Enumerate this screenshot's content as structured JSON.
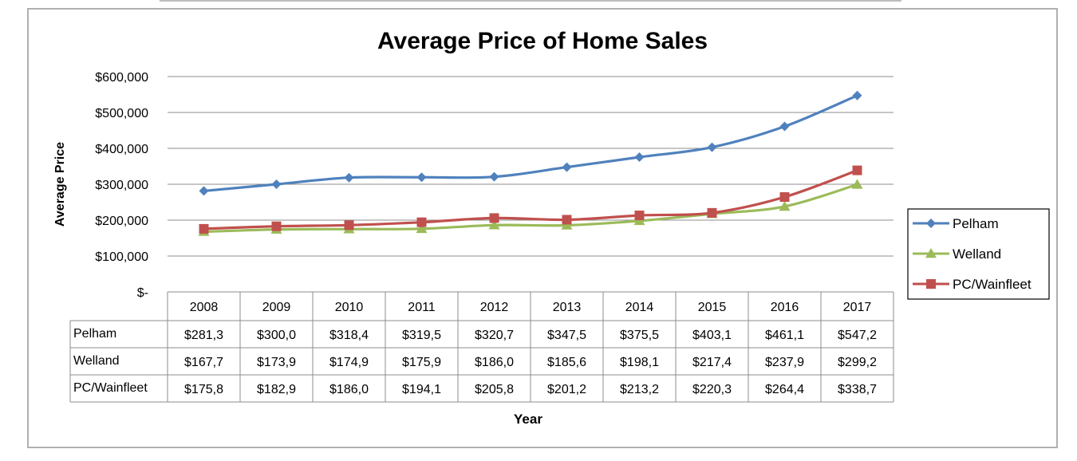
{
  "chart_data": {
    "type": "line",
    "title": "Average Price of Home Sales",
    "xlabel": "Year",
    "ylabel": "Average Price",
    "ylim": [
      0,
      600000
    ],
    "y_ticks": [
      {
        "value": 0,
        "label": "$-"
      },
      {
        "value": 100000,
        "label": "$100,000"
      },
      {
        "value": 200000,
        "label": "$200,000"
      },
      {
        "value": 300000,
        "label": "$300,000"
      },
      {
        "value": 400000,
        "label": "$400,000"
      },
      {
        "value": 500000,
        "label": "$500,000"
      },
      {
        "value": 600000,
        "label": "$600,000"
      }
    ],
    "grid": true,
    "legend_position": "right",
    "categories": [
      "2008",
      "2009",
      "2010",
      "2011",
      "2012",
      "2013",
      "2014",
      "2015",
      "2016",
      "2017"
    ],
    "series": [
      {
        "name": "Pelham",
        "color": "#4f81bd",
        "marker": "diamond",
        "values": [
          281300,
          300000,
          318400,
          319500,
          320700,
          347500,
          375500,
          403100,
          461100,
          547200
        ],
        "table_labels": [
          "$281,3",
          "$300,0",
          "$318,4",
          "$319,5",
          "$320,7",
          "$347,5",
          "$375,5",
          "$403,1",
          "$461,1",
          "$547,2"
        ]
      },
      {
        "name": "Welland",
        "color": "#9bbb59",
        "marker": "triangle",
        "values": [
          167700,
          173900,
          174900,
          175900,
          186000,
          185600,
          198100,
          217400,
          237900,
          299200
        ],
        "table_labels": [
          "$167,7",
          "$173,9",
          "$174,9",
          "$175,9",
          "$186,0",
          "$185,6",
          "$198,1",
          "$217,4",
          "$237,9",
          "$299,2"
        ]
      },
      {
        "name": "PC/Wainfleet",
        "color": "#c0504d",
        "marker": "square",
        "values": [
          175800,
          182900,
          186000,
          194100,
          205800,
          201200,
          213200,
          220300,
          264400,
          338700
        ],
        "table_labels": [
          "$175,8",
          "$182,9",
          "$186,0",
          "$194,1",
          "$205,8",
          "$201,2",
          "$213,2",
          "$220,3",
          "$264,4",
          "$338,7"
        ]
      }
    ]
  }
}
